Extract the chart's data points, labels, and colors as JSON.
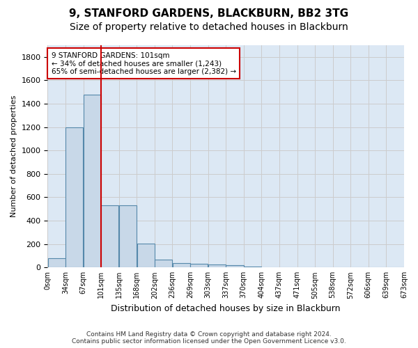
{
  "title": "9, STANFORD GARDENS, BLACKBURN, BB2 3TG",
  "subtitle": "Size of property relative to detached houses in Blackburn",
  "xlabel": "Distribution of detached houses by size in Blackburn",
  "ylabel": "Number of detached properties",
  "bin_labels": [
    "0sqm",
    "34sqm",
    "67sqm",
    "101sqm",
    "135sqm",
    "168sqm",
    "202sqm",
    "236sqm",
    "269sqm",
    "303sqm",
    "337sqm",
    "370sqm",
    "404sqm",
    "437sqm",
    "471sqm",
    "505sqm",
    "538sqm",
    "572sqm",
    "606sqm",
    "639sqm",
    "673sqm"
  ],
  "bar_values": [
    80,
    1200,
    1480,
    530,
    530,
    205,
    65,
    35,
    30,
    25,
    20,
    5,
    0,
    0,
    0,
    0,
    0,
    0,
    0,
    0
  ],
  "bar_color": "#c8d8e8",
  "bar_edge_color": "#5588aa",
  "property_line_bin": 3,
  "annotation_text": "9 STANFORD GARDENS: 101sqm\n← 34% of detached houses are smaller (1,243)\n65% of semi-detached houses are larger (2,382) →",
  "annotation_box_color": "#ffffff",
  "annotation_box_edge_color": "#cc0000",
  "red_line_color": "#cc0000",
  "ylim": [
    0,
    1900
  ],
  "yticks": [
    0,
    200,
    400,
    600,
    800,
    1000,
    1200,
    1400,
    1600,
    1800
  ],
  "footer_line1": "Contains HM Land Registry data © Crown copyright and database right 2024.",
  "footer_line2": "Contains public sector information licensed under the Open Government Licence v3.0.",
  "bg_color": "#ffffff",
  "grid_color": "#cccccc",
  "title_fontsize": 11,
  "subtitle_fontsize": 10
}
